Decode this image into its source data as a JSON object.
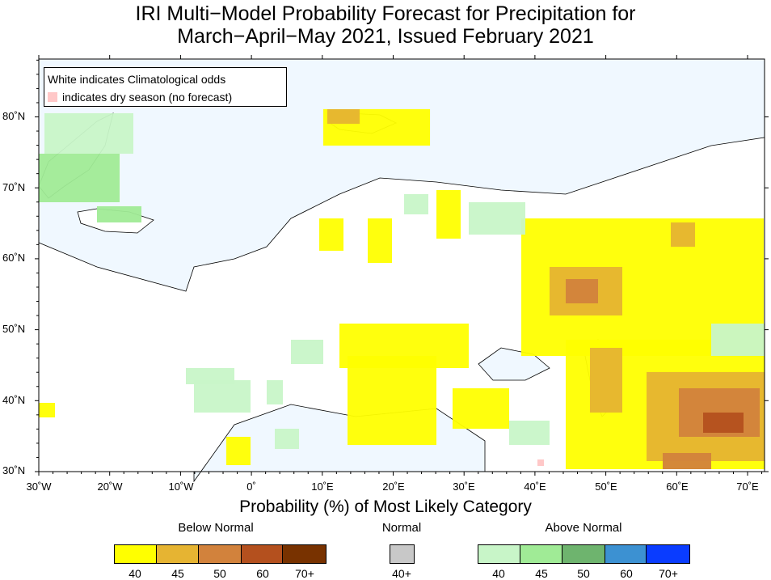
{
  "title": {
    "line1": "IRI Multi−Model Probability Forecast for Precipitation for",
    "line2": "March−April−May 2021, Issued February 2021"
  },
  "map_legend": {
    "line1": "White indicates Climatological odds",
    "line2": "indicates dry season (no forecast)",
    "dry_color": "#ffc8c8"
  },
  "axes": {
    "lat_labels": [
      "80˚N",
      "70˚N",
      "60˚N",
      "50˚N",
      "40˚N",
      "30˚N"
    ],
    "lon_labels": [
      "30˚W",
      "20˚W",
      "10˚W",
      "0˚",
      "10˚E",
      "20˚E",
      "30˚E",
      "40˚E",
      "50˚E",
      "60˚E",
      "70˚E"
    ]
  },
  "colorbar": {
    "title": "Probability (%) of Most Likely Category",
    "below": {
      "label": "Below Normal",
      "colors": [
        "#ffff00",
        "#e6b432",
        "#d2823c",
        "#b4501e",
        "#783200"
      ],
      "ticks": [
        "40",
        "45",
        "50",
        "60",
        "70+"
      ]
    },
    "normal": {
      "label": "Normal",
      "colors": [
        "#c8c8c8"
      ],
      "ticks": [
        "40+"
      ]
    },
    "above": {
      "label": "Above Normal",
      "colors": [
        "#c8f5c8",
        "#a0eb96",
        "#6eb46e",
        "#3c91d2",
        "#0a3cff"
      ],
      "ticks": [
        "40",
        "45",
        "50",
        "60",
        "70+"
      ]
    }
  },
  "colors": {
    "ocean": "#f0f8ff",
    "land": "#ffffff"
  }
}
